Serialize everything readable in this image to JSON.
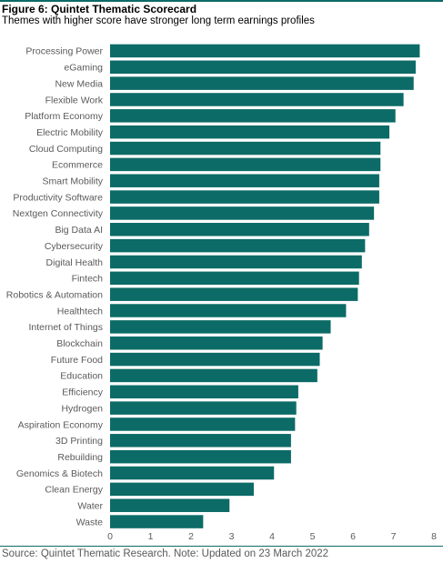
{
  "figure": {
    "title": "Figure 6: Quintet Thematic Scorecard",
    "subtitle": "Themes with higher score have stronger long term earnings profiles",
    "source": "Source: Quintet Thematic Research. Note: Updated on 23 March 2022"
  },
  "colors": {
    "bar": "#0c6b66",
    "rule": "#0c6b66",
    "text": "#5a5a5a"
  },
  "chart_data": {
    "type": "bar",
    "orientation": "horizontal",
    "title": "Figure 6: Quintet Thematic Scorecard",
    "subtitle": "Themes with higher score have stronger long term earnings profiles",
    "xlabel": "",
    "ylabel": "",
    "xlim": [
      0,
      8
    ],
    "ticks": [
      0,
      1,
      2,
      3,
      4,
      5,
      6,
      7,
      8
    ],
    "grid": false,
    "categories": [
      "Processing Power",
      "eGaming",
      "New Media",
      "Flexible Work",
      "Platform Economy",
      "Electric Mobility",
      "Cloud Computing",
      "Ecommerce",
      "Smart Mobility",
      "Productivity Software",
      "Nextgen Connectivity",
      "Big Data AI",
      "Cybersecurity",
      "Digital Health",
      "Fintech",
      "Robotics & Automation",
      "Healthtech",
      "Internet of Things",
      "Blockchain",
      "Future Food",
      "Education",
      "Efficiency",
      "Hydrogen",
      "Aspiration Economy",
      "3D Printing",
      "Rebuilding",
      "Genomics & Biotech",
      "Clean Energy",
      "Water",
      "Waste"
    ],
    "values": [
      7.65,
      7.55,
      7.5,
      7.25,
      7.05,
      6.9,
      6.68,
      6.68,
      6.65,
      6.65,
      6.52,
      6.4,
      6.3,
      6.22,
      6.15,
      6.12,
      5.83,
      5.45,
      5.25,
      5.18,
      5.12,
      4.65,
      4.6,
      4.57,
      4.47,
      4.47,
      4.05,
      3.55,
      2.95,
      2.3
    ]
  }
}
